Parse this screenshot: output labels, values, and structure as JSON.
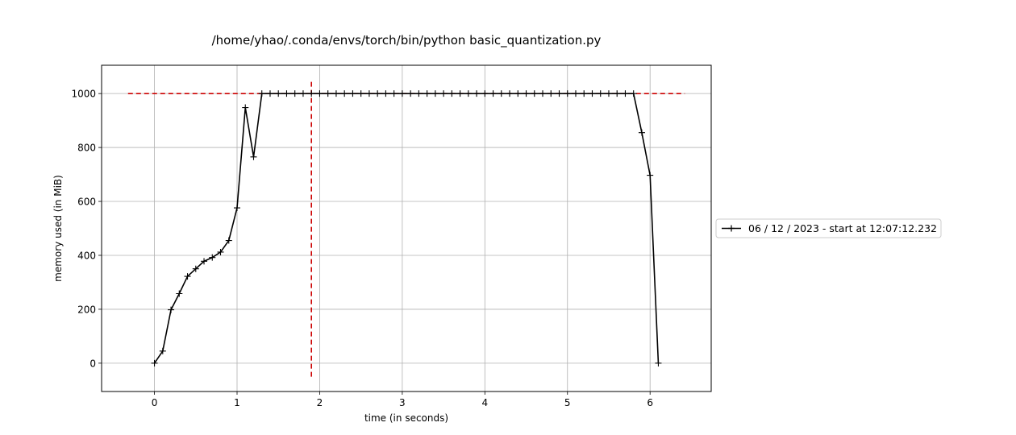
{
  "chart_data": {
    "type": "line",
    "title": "/home/yhao/.conda/envs/torch/bin/python basic_quantization.py",
    "xlabel": "time (in seconds)",
    "ylabel": "memory used (in MiB)",
    "xlim": [
      -0.64,
      6.74
    ],
    "ylim": [
      -105,
      1105
    ],
    "xticks": [
      0,
      1,
      2,
      3,
      4,
      5,
      6
    ],
    "yticks": [
      0,
      200,
      400,
      600,
      800,
      1000
    ],
    "grid": true,
    "legend_position": "right",
    "series": [
      {
        "name": "06 / 12 / 2023 - start at 12:07:12.232",
        "color": "#000000",
        "marker": "+",
        "x": [
          0.0,
          0.1,
          0.2,
          0.3,
          0.4,
          0.5,
          0.6,
          0.7,
          0.8,
          0.9,
          1.0,
          1.1,
          1.2,
          1.3,
          1.4,
          1.5,
          1.6,
          1.7,
          1.8,
          1.9,
          2.0,
          2.1,
          2.2,
          2.3,
          2.4,
          2.5,
          2.6,
          2.7,
          2.8,
          2.9,
          3.0,
          3.1,
          3.2,
          3.3,
          3.4,
          3.5,
          3.6,
          3.7,
          3.8,
          3.9,
          4.0,
          4.1,
          4.2,
          4.3,
          4.4,
          4.5,
          4.6,
          4.7,
          4.8,
          4.9,
          5.0,
          5.1,
          5.2,
          5.3,
          5.4,
          5.5,
          5.6,
          5.7,
          5.8,
          5.9,
          6.0,
          6.1
        ],
        "y": [
          0,
          45,
          198,
          258,
          322,
          350,
          378,
          392,
          412,
          455,
          576,
          948,
          765,
          1000,
          1000,
          1000,
          1000,
          1000,
          1000,
          1000,
          1000,
          1000,
          1000,
          1000,
          1000,
          1000,
          1000,
          1000,
          1000,
          1000,
          1000,
          1000,
          1000,
          1000,
          1000,
          1000,
          1000,
          1000,
          1000,
          1000,
          1000,
          1000,
          1000,
          1000,
          1000,
          1000,
          1000,
          1000,
          1000,
          1000,
          1000,
          1000,
          1000,
          1000,
          1000,
          1000,
          1000,
          1000,
          1000,
          855,
          697,
          0
        ]
      }
    ],
    "reference_lines": [
      {
        "orientation": "horizontal",
        "y": 1000,
        "x_range": [
          -0.32,
          6.42
        ],
        "color": "#cc0000",
        "style": "dashed"
      },
      {
        "orientation": "vertical",
        "x": 1.9,
        "y_range": [
          -50,
          1050
        ],
        "color": "#cc0000",
        "style": "dashed"
      }
    ]
  }
}
